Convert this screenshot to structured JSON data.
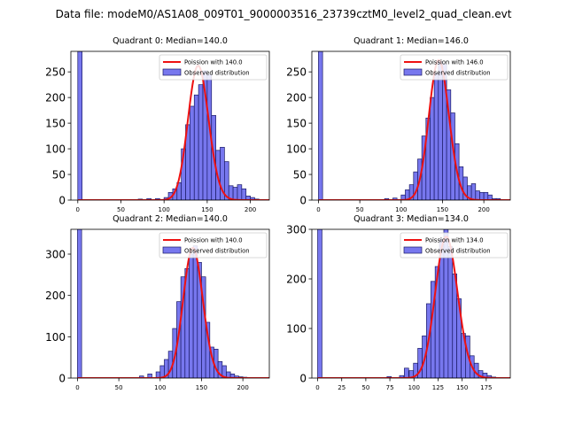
{
  "figure_title": "Data file: modeM0/AS1A08_009T01_9000003516_23739cztM0_level2_quad_clean.evt",
  "colors": {
    "hist_fill": "#7777ee",
    "hist_edge": "#1a1a66",
    "curve": "#ee1111",
    "axis": "#000000"
  },
  "chart_data": [
    {
      "type": "bar",
      "title": "Quadrant 0: Median=140.0",
      "xlabel": "",
      "ylabel": "",
      "xlim": [
        -8,
        222
      ],
      "ylim": [
        0,
        290
      ],
      "xticks": [
        0,
        50,
        100,
        150,
        200
      ],
      "yticks": [
        0,
        50,
        100,
        150,
        200,
        250
      ],
      "legend": {
        "position": "upper-right",
        "entries": [
          "Poission with 140.0",
          "Observed distribution"
        ]
      },
      "mean": 140.0,
      "bin_width": 5,
      "bin_starts": [
        0,
        70,
        80,
        90,
        100,
        105,
        110,
        115,
        120,
        125,
        130,
        135,
        140,
        145,
        150,
        155,
        160,
        165,
        170,
        175,
        180,
        185,
        190,
        195,
        200,
        205
      ],
      "counts": [
        290,
        2,
        3,
        3,
        5,
        15,
        22,
        34,
        100,
        147,
        183,
        205,
        225,
        252,
        245,
        165,
        97,
        103,
        75,
        28,
        25,
        30,
        22,
        8,
        5,
        2
      ],
      "curve_peak": 262
    },
    {
      "type": "bar",
      "title": "Quadrant 1: Median=146.0",
      "xlabel": "",
      "ylabel": "",
      "xlim": [
        -8,
        232
      ],
      "ylim": [
        0,
        290
      ],
      "xticks": [
        0,
        50,
        100,
        150,
        200
      ],
      "yticks": [
        0,
        50,
        100,
        150,
        200,
        250
      ],
      "legend": {
        "position": "upper-right",
        "entries": [
          "Poission with 146.0",
          "Observed distribution"
        ]
      },
      "mean": 146.0,
      "bin_width": 5,
      "bin_starts": [
        0,
        80,
        90,
        100,
        105,
        110,
        115,
        120,
        125,
        130,
        135,
        140,
        145,
        150,
        155,
        160,
        165,
        170,
        175,
        180,
        185,
        190,
        195,
        200,
        205,
        210,
        215
      ],
      "counts": [
        290,
        3,
        4,
        10,
        20,
        30,
        55,
        80,
        125,
        160,
        200,
        248,
        270,
        265,
        215,
        170,
        110,
        65,
        45,
        28,
        32,
        18,
        15,
        15,
        10,
        3,
        3
      ],
      "curve_peak": 273
    },
    {
      "type": "bar",
      "title": "Quadrant 2: Median=140.0",
      "xlabel": "",
      "ylabel": "",
      "xlim": [
        -8,
        232
      ],
      "ylim": [
        0,
        360
      ],
      "xticks": [
        0,
        50,
        100,
        150,
        200
      ],
      "yticks": [
        0,
        100,
        200,
        300
      ],
      "legend": {
        "position": "upper-right",
        "entries": [
          "Poission with 140.0",
          "Observed distribution"
        ]
      },
      "mean": 140.0,
      "bin_width": 5,
      "bin_starts": [
        0,
        75,
        85,
        95,
        100,
        105,
        110,
        115,
        120,
        125,
        130,
        135,
        140,
        145,
        150,
        155,
        160,
        165,
        170,
        175,
        180,
        185,
        190,
        195,
        200
      ],
      "counts": [
        360,
        5,
        10,
        15,
        30,
        45,
        65,
        120,
        185,
        245,
        265,
        300,
        320,
        280,
        245,
        135,
        75,
        70,
        40,
        30,
        15,
        10,
        5,
        3,
        2
      ],
      "curve_peak": 315
    },
    {
      "type": "bar",
      "title": "Quadrant 3: Median=134.0",
      "xlabel": "",
      "ylabel": "",
      "xlim": [
        -6,
        200
      ],
      "ylim": [
        0,
        300
      ],
      "xticks": [
        0,
        25,
        50,
        75,
        100,
        125,
        150,
        175
      ],
      "yticks": [
        0,
        100,
        200,
        300
      ],
      "legend": {
        "position": "upper-right",
        "entries": [
          "Poission with 134.0",
          "Observed distribution"
        ]
      },
      "mean": 134.0,
      "bin_width": 4.5,
      "bin_starts": [
        0,
        72,
        85,
        90,
        95,
        99.5,
        104,
        108.5,
        113,
        117.5,
        122,
        126.5,
        131,
        135.5,
        140,
        144.5,
        149,
        153.5,
        158,
        162.5,
        167,
        171.5,
        176,
        180.5
      ],
      "counts": [
        300,
        3,
        5,
        20,
        15,
        30,
        60,
        85,
        150,
        195,
        225,
        280,
        300,
        265,
        210,
        160,
        90,
        85,
        45,
        30,
        15,
        10,
        5,
        2
      ],
      "curve_peak": 285
    }
  ]
}
